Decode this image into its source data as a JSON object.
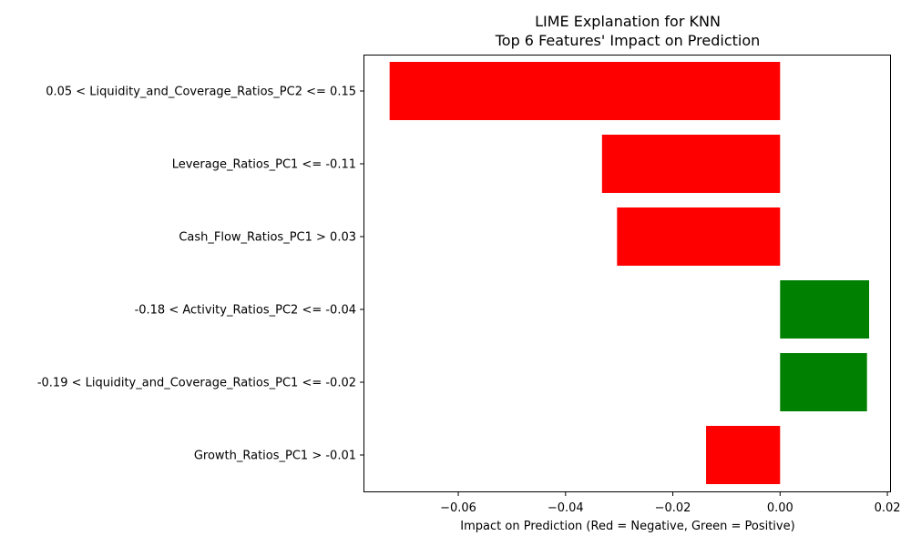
{
  "chart_data": {
    "type": "bar",
    "orientation": "horizontal",
    "title": "LIME Explanation for KNN",
    "subtitle": "Top 6 Features' Impact on Prediction",
    "xlabel": "Impact on Prediction (Red = Negative, Green = Positive)",
    "ylabel": "",
    "xlim": [
      -0.0775,
      0.0205
    ],
    "xticks": [
      -0.06,
      -0.04,
      -0.02,
      0.0,
      0.02
    ],
    "xtick_labels": [
      "−0.06",
      "−0.04",
      "−0.02",
      "0.00",
      "0.02"
    ],
    "grid": false,
    "categories": [
      "0.05 < Liquidity_and_Coverage_Ratios_PC2 <= 0.15",
      "Leverage_Ratios_PC1 <= -0.11",
      "Cash_Flow_Ratios_PC1 > 0.03",
      "-0.18 < Activity_Ratios_PC2 <= -0.04",
      "-0.19 < Liquidity_and_Coverage_Ratios_PC1 <= -0.02",
      "Growth_Ratios_PC1 > -0.01"
    ],
    "values": [
      -0.0728,
      -0.0332,
      -0.0304,
      0.0166,
      0.0162,
      -0.0138
    ],
    "colors": {
      "negative": "#ff0000",
      "positive": "#008000"
    }
  }
}
